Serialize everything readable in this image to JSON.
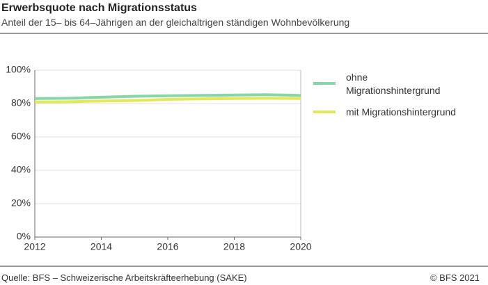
{
  "chart_data": {
    "type": "line",
    "title": "Erwerbsquote nach Migrationsstatus",
    "subtitle": "Anteil der 15– bis 64–Jährigen an der gleichaltrigen ständigen Wohnbevölkerung",
    "source": "Quelle: BFS – Schweizerische Arbeitskräfteerhebung (SAKE)",
    "copyright": "© BFS 2021",
    "x": [
      2012,
      2013,
      2014,
      2015,
      2016,
      2017,
      2018,
      2019,
      2020
    ],
    "xlim": [
      2012,
      2020
    ],
    "xticks": [
      2012,
      2014,
      2016,
      2018,
      2020
    ],
    "ylim": [
      0,
      100
    ],
    "yticks": [
      {
        "value": 0,
        "label": "0%"
      },
      {
        "value": 20,
        "label": "20%"
      },
      {
        "value": 40,
        "label": "40%"
      },
      {
        "value": 60,
        "label": "60%"
      },
      {
        "value": 80,
        "label": "80%"
      },
      {
        "value": 100,
        "label": "100%"
      }
    ],
    "grid": true,
    "series": [
      {
        "name": "ohne Migrationshintergrund",
        "color": "#86d6a8",
        "values": [
          83,
          83.2,
          83.8,
          84.4,
          84.7,
          84.9,
          85.1,
          85.3,
          84.9
        ]
      },
      {
        "name": "mit Migrationshintergrund",
        "color": "#e3e85a",
        "values": [
          81,
          81.1,
          81.5,
          81.8,
          82.5,
          82.8,
          83,
          83.2,
          83
        ]
      }
    ]
  }
}
